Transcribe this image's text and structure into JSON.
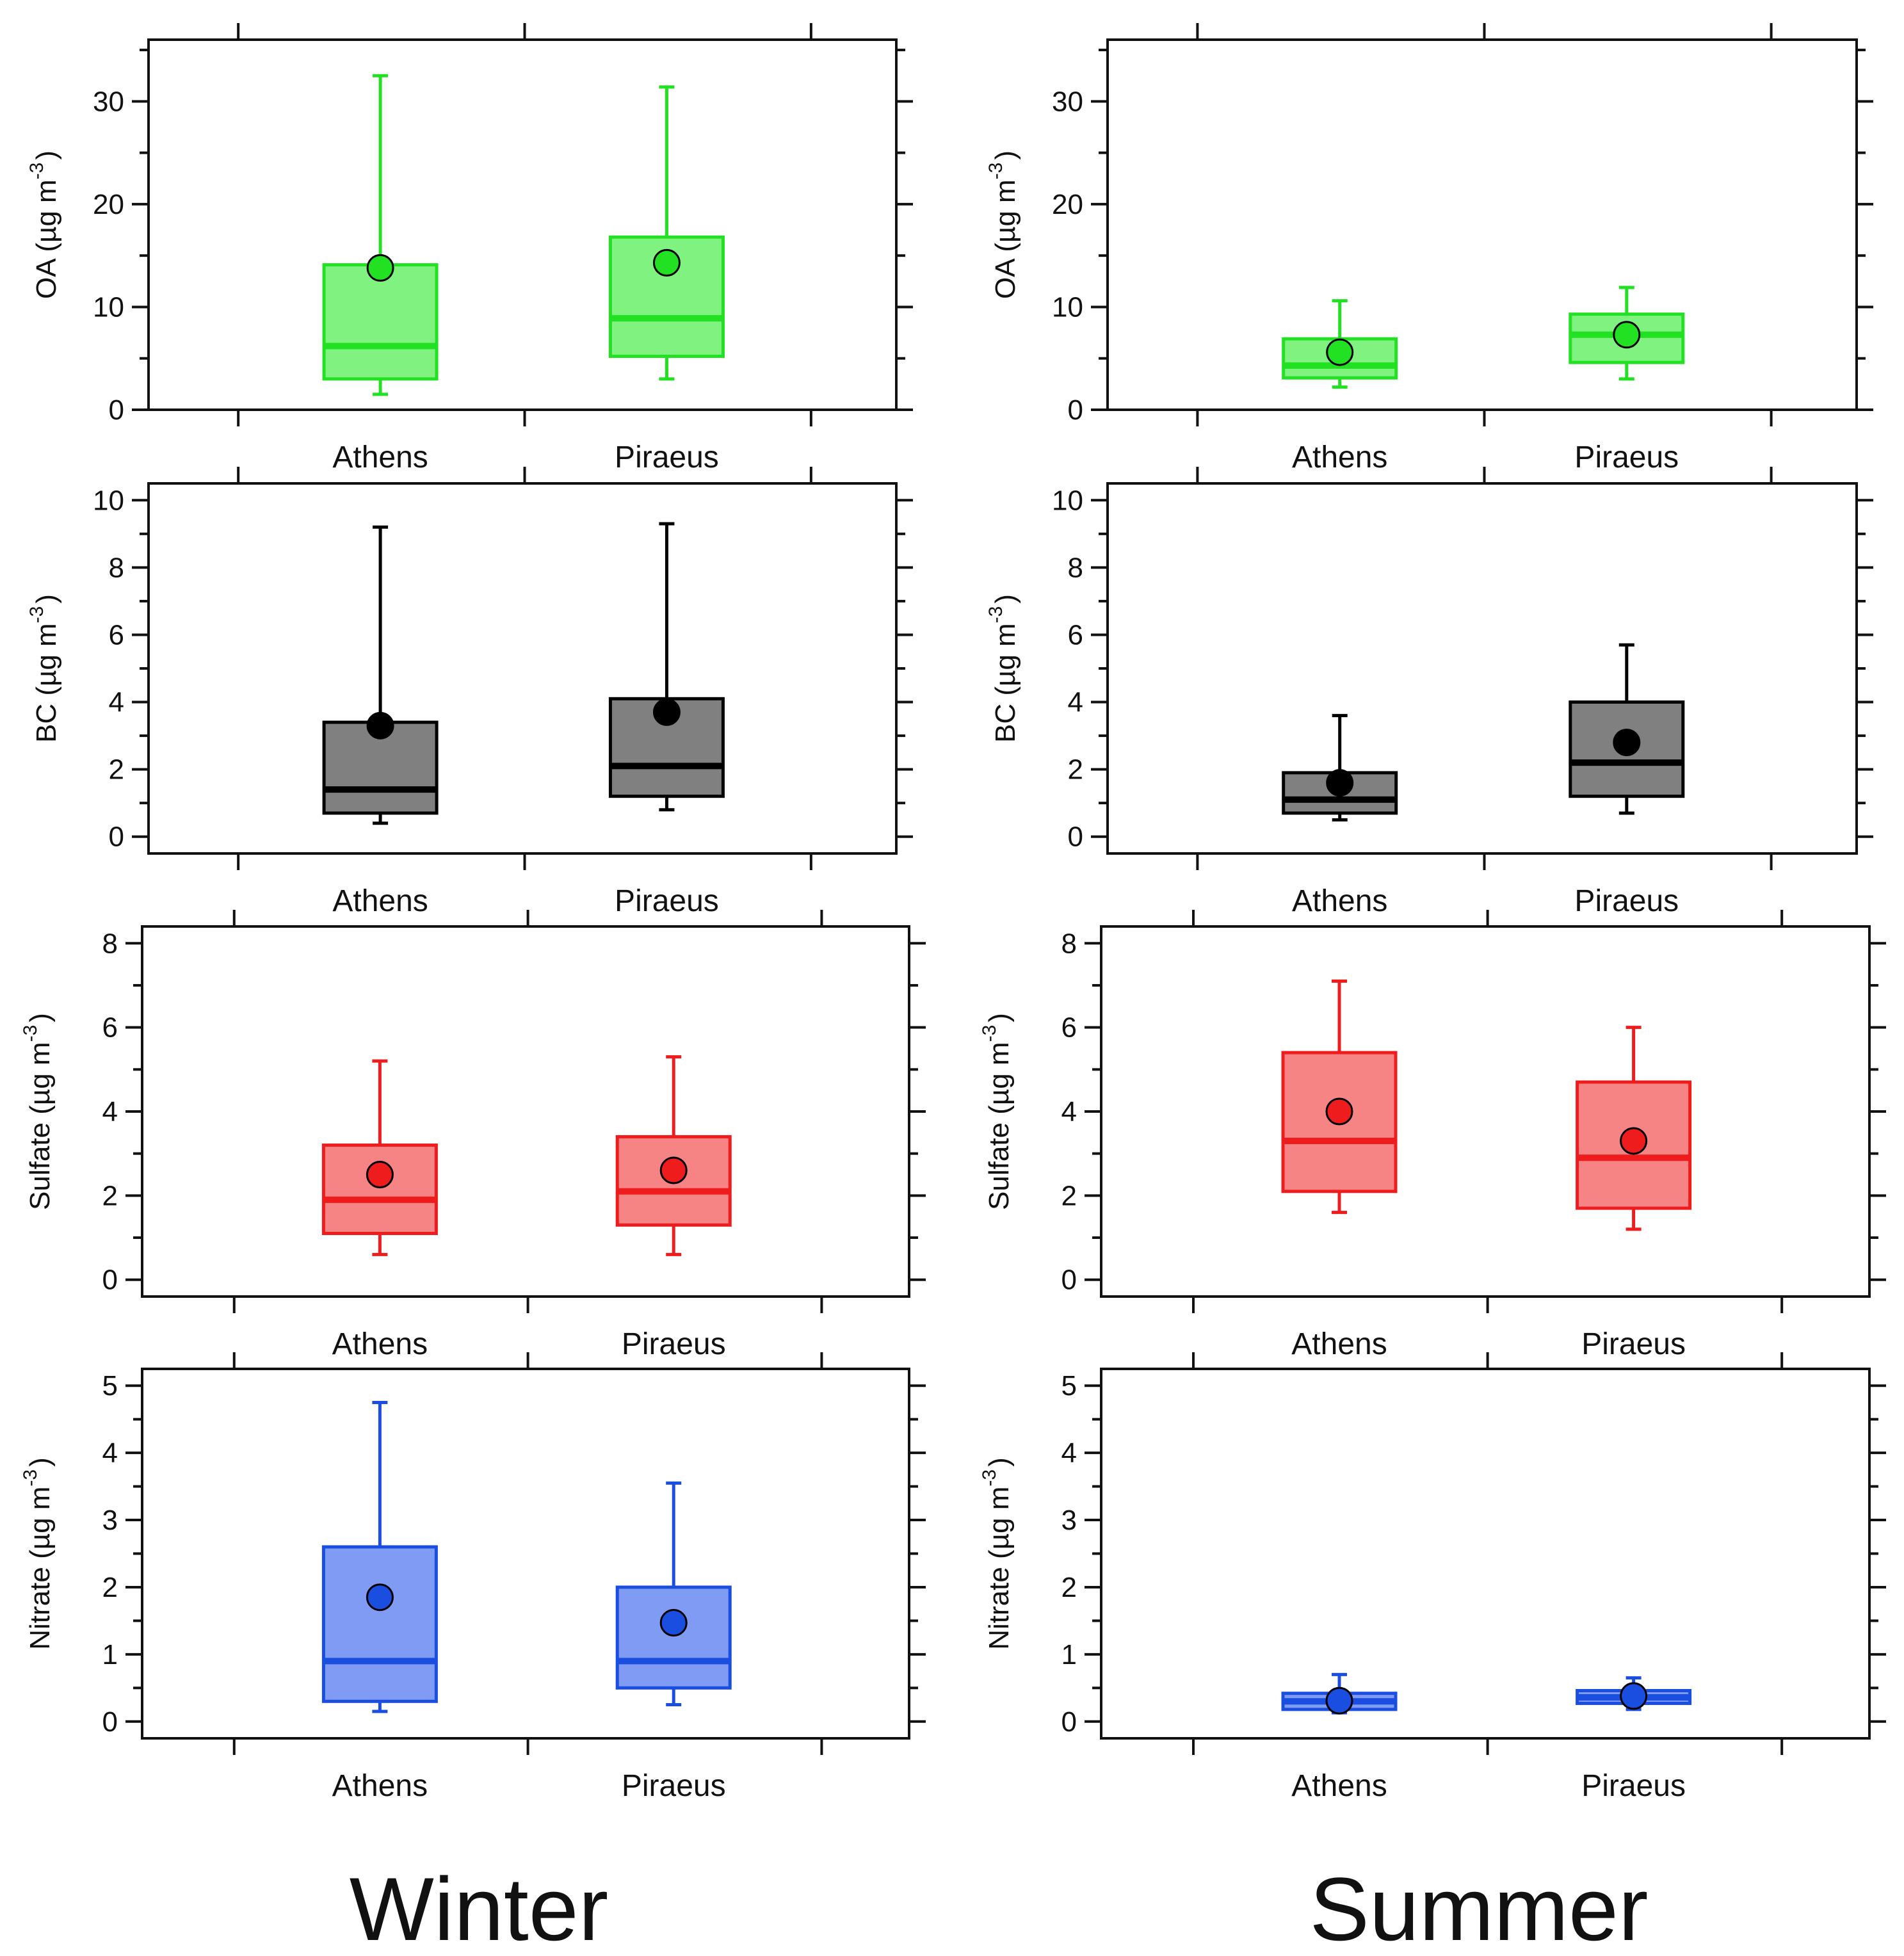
{
  "seasons": [
    "Winter",
    "Summer"
  ],
  "chart_data": [
    {
      "type": "box",
      "season": "Winter",
      "ylabel": {
        "main": "OA (µg m",
        "sup": "-3",
        "close": ")"
      },
      "ylim": [
        0,
        36
      ],
      "yticks": [
        0,
        10,
        20,
        30
      ],
      "yminor_step": 5,
      "categories": [
        "Athens",
        "Piraeus"
      ],
      "color": "#22e022",
      "fill": "#80f280",
      "boxes": [
        {
          "category": "Athens",
          "whisker_low": 1.5,
          "q1": 3.0,
          "median": 6.2,
          "q3": 14.1,
          "whisker_high": 32.5,
          "mean": 13.8
        },
        {
          "category": "Piraeus",
          "whisker_low": 3.0,
          "q1": 5.2,
          "median": 8.9,
          "q3": 16.8,
          "whisker_high": 31.4,
          "mean": 14.3
        }
      ]
    },
    {
      "type": "box",
      "season": "Summer",
      "ylabel": {
        "main": "OA (µg m",
        "sup": "-3",
        "close": ")"
      },
      "ylim": [
        0,
        36
      ],
      "yticks": [
        0,
        10,
        20,
        30
      ],
      "yminor_step": 5,
      "categories": [
        "Athens",
        "Piraeus"
      ],
      "color": "#22e022",
      "fill": "#80f280",
      "boxes": [
        {
          "category": "Athens",
          "whisker_low": 2.2,
          "q1": 3.1,
          "median": 4.3,
          "q3": 6.9,
          "whisker_high": 10.6,
          "mean": 5.6
        },
        {
          "category": "Piraeus",
          "whisker_low": 3.0,
          "q1": 4.6,
          "median": 7.3,
          "q3": 9.3,
          "whisker_high": 11.9,
          "mean": 7.3
        }
      ]
    },
    {
      "type": "box",
      "season": "Winter",
      "ylabel": {
        "main": "BC (µg m",
        "sup": "-3",
        "close": ")"
      },
      "ylim": [
        -0.5,
        10.5
      ],
      "yticks": [
        0,
        2,
        4,
        6,
        8,
        10
      ],
      "yminor_step": 1,
      "categories": [
        "Athens",
        "Piraeus"
      ],
      "color": "#000000",
      "fill": "#808080",
      "boxes": [
        {
          "category": "Athens",
          "whisker_low": 0.4,
          "q1": 0.7,
          "median": 1.4,
          "q3": 3.4,
          "whisker_high": 9.2,
          "mean": 3.3
        },
        {
          "category": "Piraeus",
          "whisker_low": 0.8,
          "q1": 1.2,
          "median": 2.1,
          "q3": 4.1,
          "whisker_high": 9.3,
          "mean": 3.7
        }
      ]
    },
    {
      "type": "box",
      "season": "Summer",
      "ylabel": {
        "main": "BC (µg m",
        "sup": "-3",
        "close": ")"
      },
      "ylim": [
        -0.5,
        10.5
      ],
      "yticks": [
        0,
        2,
        4,
        6,
        8,
        10
      ],
      "yminor_step": 1,
      "categories": [
        "Athens",
        "Piraeus"
      ],
      "color": "#000000",
      "fill": "#808080",
      "boxes": [
        {
          "category": "Athens",
          "whisker_low": 0.5,
          "q1": 0.7,
          "median": 1.1,
          "q3": 1.9,
          "whisker_high": 3.6,
          "mean": 1.6
        },
        {
          "category": "Piraeus",
          "whisker_low": 0.7,
          "q1": 1.2,
          "median": 2.2,
          "q3": 4.0,
          "whisker_high": 5.7,
          "mean": 2.8
        }
      ]
    },
    {
      "type": "box",
      "season": "Winter",
      "ylabel": {
        "main": "Sulfate (µg m",
        "sup": "-3",
        "close": ")"
      },
      "ylim": [
        -0.4,
        8.4
      ],
      "yticks": [
        0,
        2,
        4,
        6,
        8
      ],
      "yminor_step": 1,
      "categories": [
        "Athens",
        "Piraeus"
      ],
      "color": "#ee1c1c",
      "fill": "#f78484",
      "boxes": [
        {
          "category": "Athens",
          "whisker_low": 0.6,
          "q1": 1.1,
          "median": 1.9,
          "q3": 3.2,
          "whisker_high": 5.2,
          "mean": 2.5
        },
        {
          "category": "Piraeus",
          "whisker_low": 0.6,
          "q1": 1.3,
          "median": 2.1,
          "q3": 3.4,
          "whisker_high": 5.3,
          "mean": 2.6
        }
      ]
    },
    {
      "type": "box",
      "season": "Summer",
      "ylabel": {
        "main": "Sulfate (µg m",
        "sup": "-3",
        "close": ")"
      },
      "ylim": [
        -0.4,
        8.4
      ],
      "yticks": [
        0,
        2,
        4,
        6,
        8
      ],
      "yminor_step": 1,
      "categories": [
        "Athens",
        "Piraeus"
      ],
      "color": "#ee1c1c",
      "fill": "#f78484",
      "boxes": [
        {
          "category": "Athens",
          "whisker_low": 1.6,
          "q1": 2.1,
          "median": 3.3,
          "q3": 5.4,
          "whisker_high": 7.1,
          "mean": 4.0
        },
        {
          "category": "Piraeus",
          "whisker_low": 1.2,
          "q1": 1.7,
          "median": 2.9,
          "q3": 4.7,
          "whisker_high": 6.0,
          "mean": 3.3
        }
      ]
    },
    {
      "type": "box",
      "season": "Winter",
      "ylabel": {
        "main": "Nitrate (µg m",
        "sup": "-3",
        "close": ")"
      },
      "ylim": [
        -0.25,
        5.25
      ],
      "yticks": [
        0,
        1,
        2,
        3,
        4,
        5
      ],
      "yminor_step": 0.5,
      "categories": [
        "Athens",
        "Piraeus"
      ],
      "color": "#1a4ee0",
      "fill": "#7f9bf3",
      "boxes": [
        {
          "category": "Athens",
          "whisker_low": 0.15,
          "q1": 0.3,
          "median": 0.9,
          "q3": 2.6,
          "whisker_high": 4.75,
          "mean": 1.85
        },
        {
          "category": "Piraeus",
          "whisker_low": 0.25,
          "q1": 0.5,
          "median": 0.9,
          "q3": 2.0,
          "whisker_high": 3.55,
          "mean": 1.47
        }
      ]
    },
    {
      "type": "box",
      "season": "Summer",
      "ylabel": {
        "main": "Nitrate (µg m",
        "sup": "-3",
        "close": ")"
      },
      "ylim": [
        -0.25,
        5.25
      ],
      "yticks": [
        0,
        1,
        2,
        3,
        4,
        5
      ],
      "yminor_step": 0.5,
      "categories": [
        "Athens",
        "Piraeus"
      ],
      "color": "#1a4ee0",
      "fill": "#7f9bf3",
      "boxes": [
        {
          "category": "Athens",
          "whisker_low": 0.13,
          "q1": 0.18,
          "median": 0.3,
          "q3": 0.42,
          "whisker_high": 0.7,
          "mean": 0.31
        },
        {
          "category": "Piraeus",
          "whisker_low": 0.18,
          "q1": 0.27,
          "median": 0.36,
          "q3": 0.46,
          "whisker_high": 0.65,
          "mean": 0.38
        }
      ]
    }
  ]
}
